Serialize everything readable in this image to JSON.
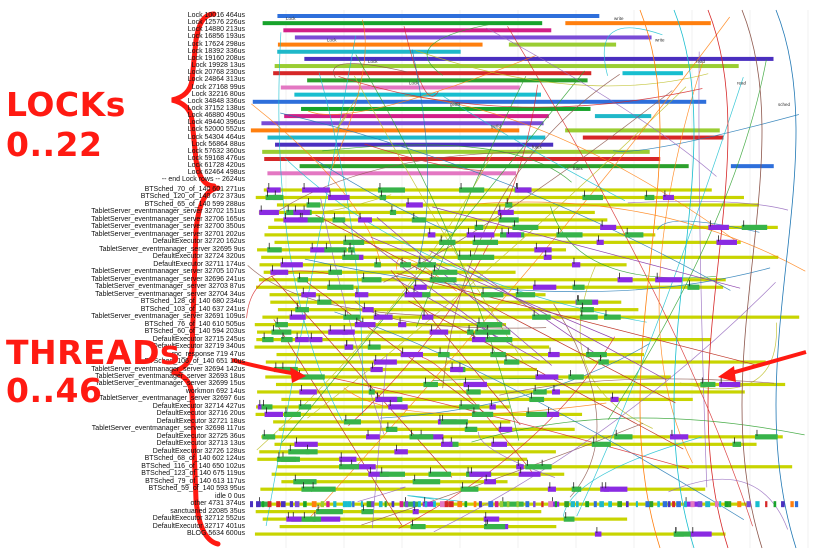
{
  "annotations": {
    "locks_title": "LOCKs",
    "locks_range": "0..22",
    "threads_title": "THREADs",
    "threads_range": "0..46",
    "accent_color": "#ff1a12"
  },
  "lock_rows": [
    "Lock 10016 464us",
    "Lock 12576 226us",
    "Lock 14880 213us",
    "Lock 16856 193us",
    "Lock 17624 298us",
    "Lock 18392 336us",
    "Lock 19160 208us",
    "Lock 19928 13us",
    "Lock 20768 230us",
    "Lock 24864 313us",
    "Lock 27168 99us",
    "Lock 32216 80us",
    "Lock 34848 336us",
    "Lock 37152 138us",
    "Lock 46880 490us",
    "Lock 49440 396us",
    "Lock 52000 552us",
    "Lock 54304 464us",
    "Lock 56864 88us",
    "Lock 57632 360us",
    "Lock 59168 476us",
    "Lock 61728 420us",
    "Lock 62464 498us",
    "-- end Lock rows -- 2624us"
  ],
  "thread_rows": [
    "BTSched_70_of_140 601 271us",
    "BTSched_120_of_140 672 373us",
    "BTSched_65_of_140 599 288us",
    "TabletServer_eventmanager_server 32702 151us",
    "TabletServer_eventmanager_server 32706 165us",
    "TabletServer_eventmanager_server 32700 350us",
    "TabletServer_eventmanager_server 32701 202us",
    "DefaultExecutor 32720 162us",
    "TabletServer_eventmanager_server 32695 9us",
    "DefaultExecutor 32724 320us",
    "DefaultExecutor 32711 174us",
    "TabletServer_eventmanager_server 32705 107us",
    "TabletServer_eventmanager_server 32696 241us",
    "TabletServer_eventmanager_server 32703 87us",
    "TabletServer_eventmanager_server 32704 34us",
    "BTSched_128_of_140 680 234us",
    "BTSched_103_of_140 637 241us",
    "TabletServer_eventmanager_server 32691 109us",
    "BTSched_76_of_140 610 505us",
    "BTSched_60_of_140 594 203us",
    "DefaultExecutor 32715 245us",
    "DefaultExecutor 32719 340us",
    "rpc_response 719 47us",
    "BTSched_106_of_140 651 10us",
    "TabletServer_eventmanager_server 32694 142us",
    "TabletServer_eventmanager_server 32693 18us",
    "TabletServer_eventmanager_server 32699 15us",
    "workmon 692 14us",
    "TabletServer_eventmanager_server 32697 6us",
    "DefaultExecutor 32714 427us",
    "DefaultExecutor 32716 20us",
    "DefaultExecutor 32721 18us",
    "TabletServer_eventmanager_server 32698 117us",
    "DefaultExecutor 32725 36us",
    "DefaultExecutor 32713 13us",
    "DefaultExecutor 32726 128us",
    "BTSched_68_of_140 602 124us",
    "BTSched_116_of_140 650 102us",
    "BTSched_123_of_140 675 119us",
    "BTSched_79_of_140 613 117us",
    "BTSched_59_of_140 593 95us",
    "idle 0 0us",
    "other 4731 374us",
    "sanctuaried 22085 35us",
    "DefaultExecutor 32712 552us",
    "DefaultExecutor 32717 401us",
    "BLOG 5634 600us"
  ],
  "segment_labels": [
    "Lock",
    "Lock",
    "Lock",
    "Lock",
    "getfd",
    "getfd",
    "futex",
    "futex",
    "write",
    "write",
    "read",
    "read",
    "sched"
  ],
  "colors": {
    "lock_palette": [
      "#2e6fdb",
      "#17a32b",
      "#d21f88",
      "#7a4bd6",
      "#ff7f0e",
      "#1fb8c9",
      "#4a2fbf",
      "#9acd32",
      "#d62728",
      "#2ca02c",
      "#e377c2",
      "#17becf"
    ],
    "thread_bar": "#c8d400",
    "cpu_block": "#8a2be2",
    "arrow": "#ff1a12",
    "arc_palette": [
      "#9467bd",
      "#2ca02c",
      "#ff7f0e",
      "#17becf",
      "#d62728",
      "#8c564b",
      "#1f77b4",
      "#bcbd22"
    ]
  }
}
